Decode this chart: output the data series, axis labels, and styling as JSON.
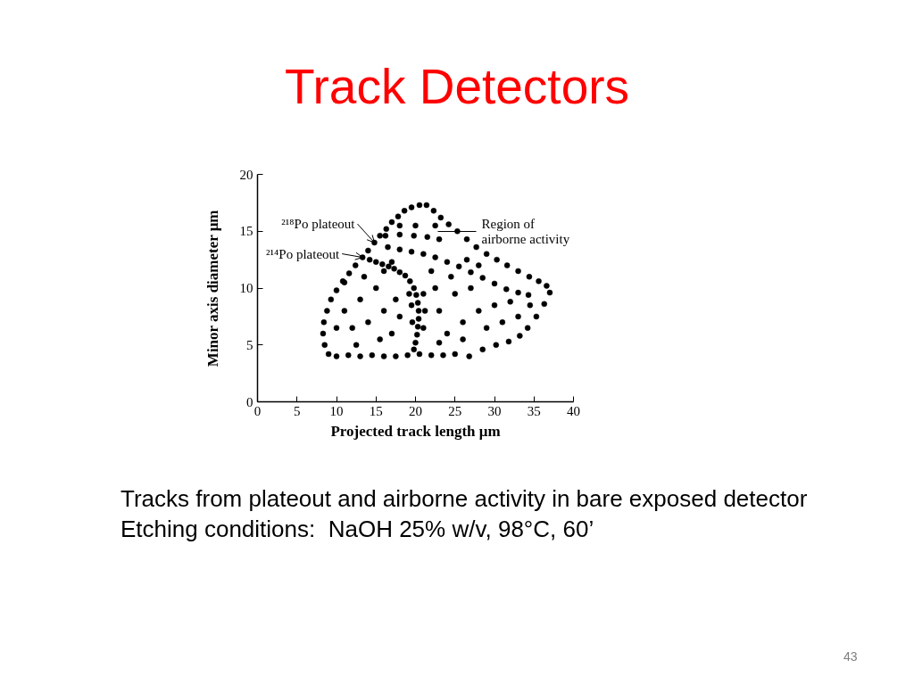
{
  "chart_data": {
    "type": "scatter",
    "title": "Track Detectors",
    "xlabel": "Projected track length μm",
    "ylabel": "Minor axis diameter μm",
    "xlim": [
      0,
      40
    ],
    "ylim": [
      0,
      20
    ],
    "xticks": [
      0,
      5,
      10,
      15,
      20,
      25,
      30,
      35,
      40
    ],
    "yticks": [
      0,
      5,
      10,
      15,
      20
    ],
    "grid": false,
    "marker": "circle",
    "color": "#000000",
    "x": [
      13.3,
      14,
      14.8,
      15.5,
      16.3,
      17,
      17.8,
      18.6,
      19.5,
      20.5,
      21.4,
      22.3,
      23.2,
      24.2,
      25.3,
      26.5,
      27.7,
      29,
      30.3,
      31.6,
      33,
      34.4,
      35.6,
      36.6,
      37,
      36.3,
      35.3,
      34.2,
      33.2,
      31.8,
      30.2,
      28.5,
      26.8,
      25,
      23.5,
      22,
      20.5,
      19,
      17.5,
      16,
      14.5,
      13,
      11.5,
      10,
      9,
      8.5,
      8.3,
      8.4,
      8.8,
      9.3,
      10,
      10.8,
      11.6,
      12.4,
      14.2,
      15,
      15.8,
      16.6,
      17.3,
      18,
      18.7,
      19.3,
      19.8,
      20.1,
      20.3,
      20.4,
      20.4,
      20.3,
      20.2,
      20,
      19.8,
      19.2,
      19.5,
      21,
      21.2,
      19.6,
      21,
      16,
      17,
      16.5,
      18,
      19.5,
      21,
      22.5,
      24,
      25.5,
      27,
      28.5,
      30,
      31.5,
      33,
      34.3,
      16.2,
      18,
      19.8,
      21.5,
      23,
      11,
      12,
      13,
      14,
      15,
      16,
      17,
      15.5,
      12.5,
      10,
      11,
      13.5,
      17.5,
      18,
      22.5,
      23,
      24,
      25,
      26,
      27,
      28,
      29,
      30,
      31,
      32,
      33,
      34.5,
      26,
      23,
      22,
      24.5,
      26.5,
      28,
      20,
      22.5,
      18
    ],
    "values": [
      12.7,
      13.3,
      14,
      14.6,
      15.2,
      15.8,
      16.3,
      16.8,
      17.1,
      17.3,
      17.3,
      16.8,
      16.2,
      15.6,
      15,
      14.3,
      13.6,
      13,
      12.5,
      12,
      11.5,
      11,
      10.6,
      10.2,
      9.6,
      8.6,
      7.5,
      6.5,
      5.8,
      5.3,
      5,
      4.6,
      4,
      4.2,
      4.1,
      4.1,
      4.2,
      4.1,
      4,
      4,
      4.1,
      4,
      4.1,
      4,
      4.2,
      5,
      6,
      7,
      8,
      9,
      9.8,
      10.6,
      11.3,
      12,
      12.5,
      12.3,
      12.1,
      11.9,
      11.7,
      11.4,
      11.1,
      10.6,
      10,
      9.4,
      8.7,
      8,
      7.3,
      6.6,
      5.9,
      5.2,
      4.6,
      9.5,
      8.5,
      9.5,
      8,
      7,
      6.5,
      11.5,
      12.3,
      13.6,
      13.4,
      13.2,
      13,
      12.7,
      12.3,
      11.9,
      11.4,
      10.9,
      10.4,
      9.9,
      9.6,
      9.4,
      14.6,
      14.7,
      14.6,
      14.5,
      14.3,
      8,
      6.5,
      9,
      7,
      10,
      8,
      6,
      5.5,
      5,
      6.5,
      10.5,
      11,
      9,
      7.5,
      10,
      8,
      6,
      9.5,
      7,
      10,
      8,
      6.5,
      8.5,
      7,
      8.8,
      7.5,
      8.5,
      5.5,
      5.2,
      11.5,
      11,
      12.5,
      12,
      15.5,
      15.5,
      15.5
    ],
    "annotations": [
      {
        "text": "²¹⁸Po plateout",
        "x": 14.8,
        "y": 14
      },
      {
        "text": "²¹⁴Po plateout",
        "x": 13.3,
        "y": 12.7
      },
      "Region of airborne activity",
      "Tracks from plateout and airborne activity in bare exposed detector",
      "Etching conditions:  NaOH 25% w/v, 98°C, 60’",
      "43"
    ]
  }
}
